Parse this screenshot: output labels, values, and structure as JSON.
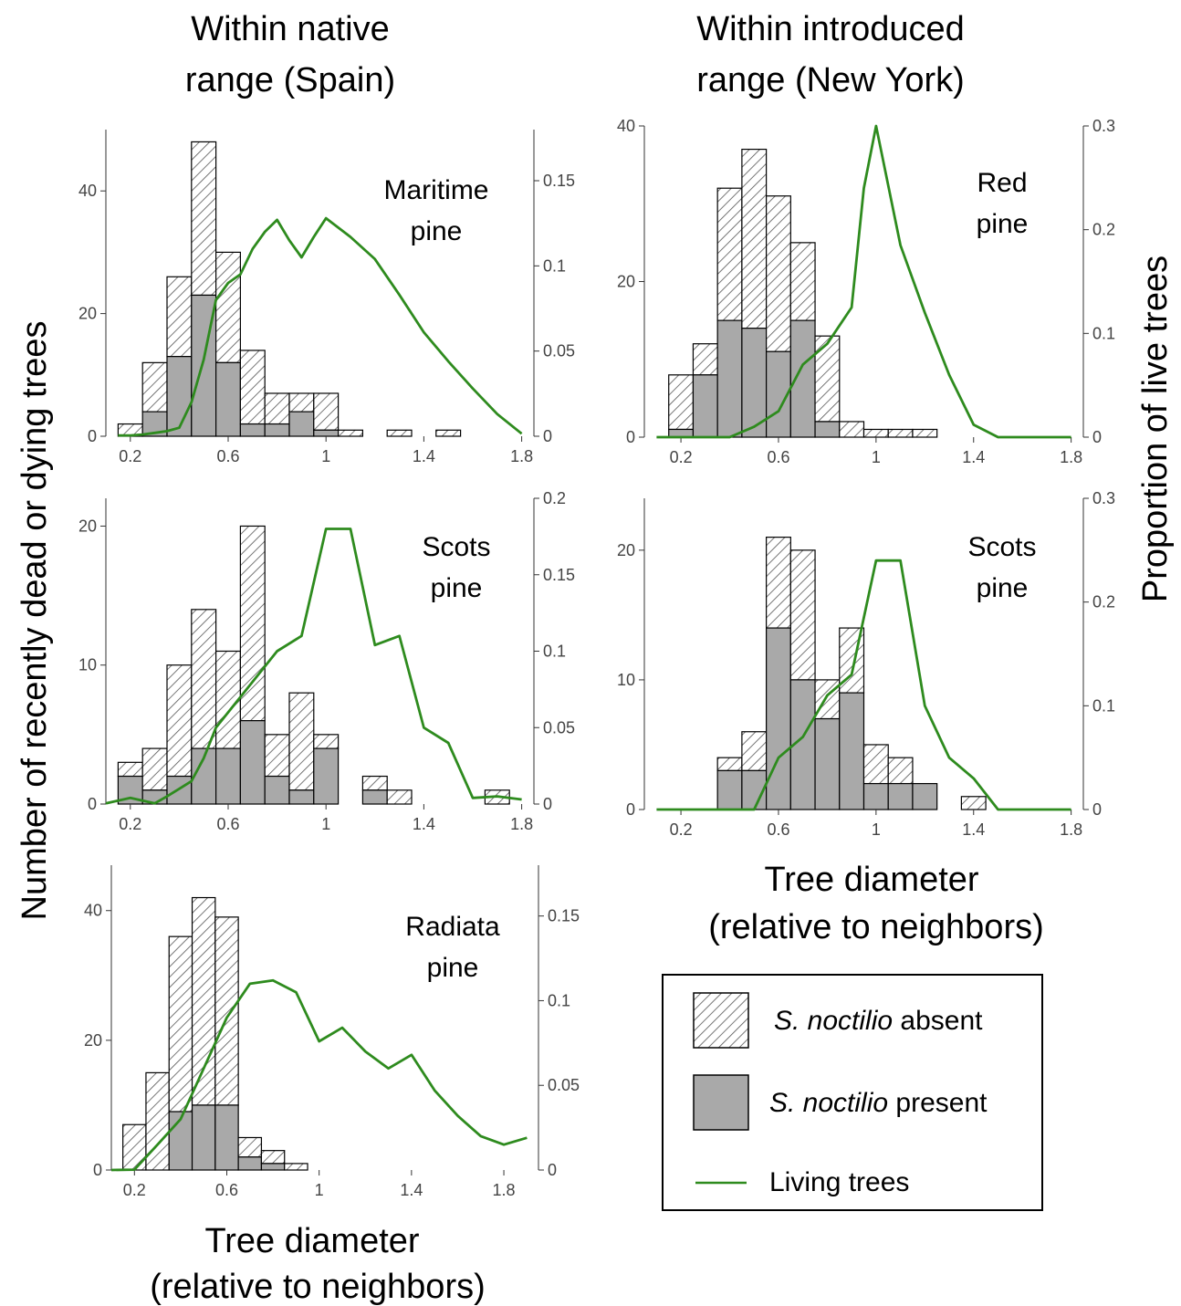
{
  "headers": {
    "native": [
      "Within native",
      "range (Spain)"
    ],
    "introduced": [
      "Within introduced",
      "range (New York)"
    ]
  },
  "ylabel_left": "Number of recently dead or dying trees",
  "ylabel_right": "Proportion of live trees",
  "xlabel": [
    "Tree diameter",
    "(relative to neighbors)"
  ],
  "legend": {
    "absent_italic": "S. noctilio",
    "absent_rest": " absent",
    "present_italic": "S. noctilio",
    "present_rest": " present",
    "line": "Living trees"
  },
  "colors": {
    "line": "#2e8b1e",
    "present_fill": "#a9a9a9",
    "hatch": "#555555"
  },
  "chart_data": [
    {
      "id": "maritime",
      "type": "bar+line",
      "label": [
        "Maritime",
        "pine"
      ],
      "bin_width": 0.1,
      "xlim": [
        0.1,
        1.85
      ],
      "ylim": [
        0,
        50
      ],
      "y2lim": [
        0,
        0.18
      ],
      "xticks": [
        "0.2",
        "0.6",
        "1",
        "1.4",
        "1.8"
      ],
      "xtick_values": [
        0.2,
        0.6,
        1.0,
        1.4,
        1.8
      ],
      "yticks": [
        "0",
        "20",
        "40"
      ],
      "ytick_values": [
        0,
        20,
        40
      ],
      "y2ticks": [
        "0",
        "0.05",
        "0.1",
        "0.15"
      ],
      "y2tick_values": [
        0,
        0.05,
        0.1,
        0.15
      ],
      "bins": [
        0.2,
        0.3,
        0.4,
        0.5,
        0.6,
        0.7,
        0.8,
        0.9,
        1.0,
        1.1,
        1.3,
        1.5
      ],
      "total": [
        2,
        12,
        26,
        48,
        30,
        14,
        7,
        7,
        7,
        1,
        1,
        1
      ],
      "present": [
        0,
        4,
        13,
        23,
        12,
        2,
        2,
        4,
        1,
        0,
        0,
        0
      ],
      "line_x": [
        0.15,
        0.2,
        0.25,
        0.3,
        0.35,
        0.4,
        0.45,
        0.5,
        0.55,
        0.6,
        0.65,
        0.7,
        0.75,
        0.8,
        0.85,
        0.9,
        0.95,
        1.0,
        1.1,
        1.2,
        1.3,
        1.4,
        1.5,
        1.6,
        1.7,
        1.8
      ],
      "line_y": [
        0.0005,
        0.0005,
        0.001,
        0.002,
        0.003,
        0.005,
        0.02,
        0.045,
        0.08,
        0.09,
        0.095,
        0.11,
        0.12,
        0.127,
        0.115,
        0.105,
        0.117,
        0.128,
        0.117,
        0.104,
        0.083,
        0.061,
        0.044,
        0.028,
        0.013,
        0.0015
      ]
    },
    {
      "id": "scots_spain",
      "type": "bar+line",
      "label": [
        "Scots",
        "pine"
      ],
      "bin_width": 0.1,
      "xlim": [
        0.1,
        1.85
      ],
      "ylim": [
        0,
        22
      ],
      "y2lim": [
        0,
        0.2
      ],
      "xticks": [
        "0.2",
        "0.6",
        "1",
        "1.4",
        "1.8"
      ],
      "xtick_values": [
        0.2,
        0.6,
        1.0,
        1.4,
        1.8
      ],
      "yticks": [
        "0",
        "10",
        "20"
      ],
      "ytick_values": [
        0,
        10,
        20
      ],
      "y2ticks": [
        "0",
        "0.05",
        "0.1",
        "0.15",
        "0.2"
      ],
      "y2tick_values": [
        0,
        0.05,
        0.1,
        0.15,
        0.2
      ],
      "bins": [
        0.2,
        0.3,
        0.4,
        0.5,
        0.6,
        0.7,
        0.8,
        0.9,
        1.0,
        1.2,
        1.3,
        1.7
      ],
      "total": [
        3,
        4,
        10,
        14,
        11,
        20,
        5,
        8,
        5,
        2,
        1,
        1
      ],
      "present": [
        2,
        1,
        2,
        4,
        4,
        6,
        2,
        1,
        4,
        1,
        0,
        0
      ],
      "line_x": [
        0.1,
        0.2,
        0.3,
        0.35,
        0.4,
        0.45,
        0.5,
        0.55,
        0.6,
        0.7,
        0.8,
        0.9,
        1.0,
        1.1,
        1.2,
        1.3,
        1.4,
        1.5,
        1.6,
        1.7,
        1.8
      ],
      "line_y": [
        0.0005,
        0.004,
        0.0005,
        0.005,
        0.01,
        0.015,
        0.03,
        0.05,
        0.06,
        0.08,
        0.1,
        0.11,
        0.18,
        0.18,
        0.104,
        0.11,
        0.05,
        0.04,
        0.004,
        0.005,
        0.003
      ]
    },
    {
      "id": "radiata",
      "type": "bar+line",
      "label": [
        "Radiata",
        "pine"
      ],
      "bin_width": 0.1,
      "xlim": [
        0.1,
        1.95
      ],
      "ylim": [
        0,
        47
      ],
      "y2lim": [
        0,
        0.18
      ],
      "xticks": [
        "0.2",
        "0.6",
        "1",
        "1.4",
        "1.8"
      ],
      "xtick_values": [
        0.2,
        0.6,
        1.0,
        1.4,
        1.8
      ],
      "yticks": [
        "0",
        "20",
        "40"
      ],
      "ytick_values": [
        0,
        20,
        40
      ],
      "y2ticks": [
        "0",
        "0.05",
        "0.1",
        "0.15"
      ],
      "y2tick_values": [
        0,
        0.05,
        0.1,
        0.15
      ],
      "bins": [
        0.2,
        0.3,
        0.4,
        0.5,
        0.6,
        0.7,
        0.8,
        0.9
      ],
      "total": [
        7,
        15,
        36,
        42,
        39,
        5,
        3,
        1
      ],
      "present": [
        0,
        0,
        9,
        10,
        10,
        2,
        1,
        0
      ],
      "line_x": [
        0.1,
        0.2,
        0.3,
        0.4,
        0.5,
        0.6,
        0.7,
        0.8,
        0.9,
        1.0,
        1.1,
        1.2,
        1.3,
        1.4,
        1.5,
        1.6,
        1.7,
        1.8,
        1.9
      ],
      "line_y": [
        0,
        0.0002,
        0.015,
        0.03,
        0.06,
        0.09,
        0.11,
        0.112,
        0.105,
        0.076,
        0.084,
        0.07,
        0.06,
        0.068,
        0.047,
        0.032,
        0.02,
        0.015,
        0.019
      ]
    },
    {
      "id": "red_pine",
      "type": "bar+line",
      "label": [
        "Red",
        "pine"
      ],
      "bin_width": 0.1,
      "xlim": [
        0.05,
        1.85
      ],
      "ylim": [
        0,
        40
      ],
      "y2lim": [
        0,
        0.3
      ],
      "xticks": [
        "0.2",
        "0.6",
        "1",
        "1.4",
        "1.8"
      ],
      "xtick_values": [
        0.2,
        0.6,
        1.0,
        1.4,
        1.8
      ],
      "yticks": [
        "0",
        "20",
        "40"
      ],
      "ytick_values": [
        0,
        20,
        40
      ],
      "y2ticks": [
        "0",
        "0.1",
        "0.2",
        "0.3"
      ],
      "y2tick_values": [
        0,
        0.1,
        0.2,
        0.3
      ],
      "bins": [
        0.2,
        0.3,
        0.4,
        0.5,
        0.6,
        0.7,
        0.8,
        0.9,
        1.0,
        1.1,
        1.2,
        1.3
      ],
      "total": [
        8,
        12,
        32,
        37,
        31,
        25,
        13,
        2,
        1,
        1,
        1,
        0
      ],
      "present": [
        1,
        8,
        15,
        14,
        11,
        15,
        2,
        0,
        0,
        0,
        0,
        0
      ],
      "line_x": [
        0.1,
        0.2,
        0.3,
        0.4,
        0.5,
        0.6,
        0.7,
        0.8,
        0.9,
        0.95,
        1.0,
        1.1,
        1.2,
        1.3,
        1.4,
        1.5,
        1.6,
        1.7,
        1.8
      ],
      "line_y": [
        0,
        0,
        0,
        0,
        0.01,
        0.025,
        0.07,
        0.09,
        0.125,
        0.24,
        0.3,
        0.185,
        0.12,
        0.06,
        0.012,
        0,
        0,
        0,
        0
      ]
    },
    {
      "id": "scots_ny",
      "type": "bar+line",
      "label": [
        "Scots",
        "pine"
      ],
      "bin_width": 0.1,
      "xlim": [
        0.05,
        1.85
      ],
      "ylim": [
        0,
        24
      ],
      "y2lim": [
        0,
        0.3
      ],
      "xticks": [
        "0.2",
        "0.6",
        "1",
        "1.4",
        "1.8"
      ],
      "xtick_values": [
        0.2,
        0.6,
        1.0,
        1.4,
        1.8
      ],
      "yticks": [
        "0",
        "10",
        "20"
      ],
      "ytick_values": [
        0,
        10,
        20
      ],
      "y2ticks": [
        "0",
        "0.1",
        "0.2",
        "0.3"
      ],
      "y2tick_values": [
        0,
        0.1,
        0.2,
        0.3
      ],
      "bins": [
        0.4,
        0.5,
        0.6,
        0.7,
        0.8,
        0.9,
        1.0,
        1.1,
        1.2,
        1.4
      ],
      "total": [
        4,
        6,
        21,
        20,
        10,
        14,
        5,
        4,
        2,
        1
      ],
      "present": [
        3,
        3,
        14,
        10,
        7,
        9,
        2,
        2,
        2,
        0
      ],
      "line_x": [
        0.1,
        0.2,
        0.3,
        0.4,
        0.5,
        0.6,
        0.7,
        0.8,
        0.9,
        1.0,
        1.1,
        1.2,
        1.3,
        1.4,
        1.5,
        1.6,
        1.7,
        1.8
      ],
      "line_y": [
        0,
        0,
        0,
        0,
        0,
        0.05,
        0.07,
        0.11,
        0.13,
        0.24,
        0.24,
        0.1,
        0.05,
        0.03,
        0,
        0,
        0,
        0
      ]
    }
  ]
}
